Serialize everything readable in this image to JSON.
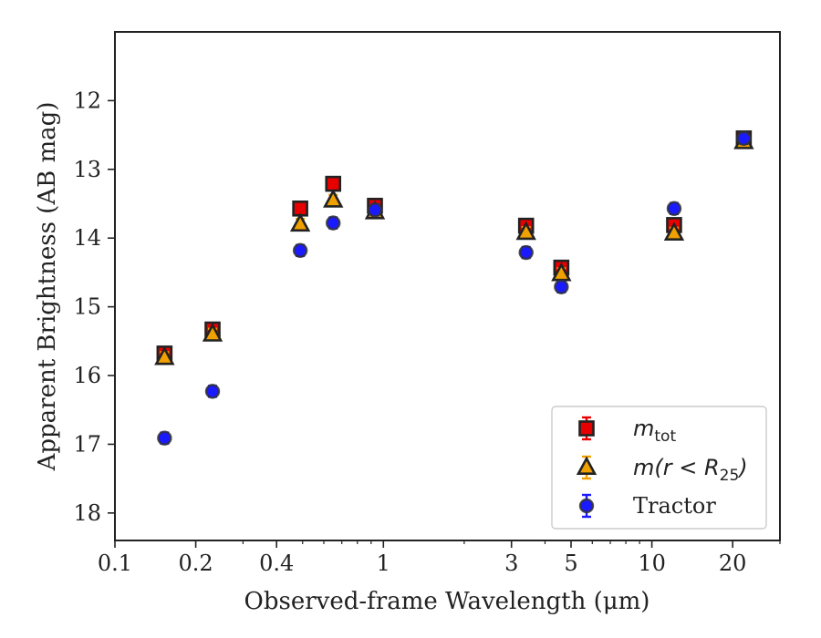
{
  "chart_data": {
    "type": "scatter",
    "xlabel": "Observed-frame Wavelength (μm)",
    "ylabel": "Apparent Brightness (AB mag)",
    "xscale": "log",
    "xlim": [
      0.1,
      30
    ],
    "ylim": [
      18.4,
      11.0
    ],
    "y_inverted": true,
    "x_ticks": [
      0.1,
      0.2,
      0.4,
      1,
      3,
      5,
      10,
      20
    ],
    "x_tick_labels": [
      "0.1",
      "0.2",
      "0.4",
      "1",
      "3",
      "5",
      "10",
      "20"
    ],
    "y_ticks": [
      12,
      13,
      14,
      15,
      16,
      17,
      18
    ],
    "y_tick_labels": [
      "12",
      "13",
      "14",
      "15",
      "16",
      "17",
      "18"
    ],
    "grid": false,
    "legend_position": "lower-right",
    "series": [
      {
        "name": "m_tot",
        "label_main": "m",
        "label_sub": "tot",
        "marker": "square",
        "color": "#e80000",
        "edge_color": "#222222",
        "errbar_color": "#e80000",
        "x": [
          0.153,
          0.231,
          0.49,
          0.65,
          0.93,
          3.4,
          4.6,
          12.1,
          22.0
        ],
        "y": [
          15.68,
          15.33,
          13.57,
          13.21,
          13.53,
          13.82,
          14.43,
          13.81,
          12.55
        ]
      },
      {
        "name": "m(r < R25)",
        "label_main": "m(r < R",
        "label_sub": "25",
        "label_tail": ")",
        "marker": "triangle",
        "color": "#f0a000",
        "edge_color": "#222222",
        "errbar_color": "#f0a000",
        "x": [
          0.153,
          0.231,
          0.49,
          0.65,
          0.93,
          3.4,
          4.6,
          12.1,
          22.0
        ],
        "y": [
          15.74,
          15.4,
          13.8,
          13.45,
          13.62,
          13.92,
          14.52,
          13.93,
          12.6
        ]
      },
      {
        "name": "Tractor",
        "label_main": "Tractor",
        "marker": "circle",
        "color": "#1a1aff",
        "edge_color": "#333333",
        "errbar_color": "#1a1aff",
        "x": [
          0.153,
          0.231,
          0.49,
          0.65,
          0.93,
          3.4,
          4.6,
          12.1,
          22.0
        ],
        "y": [
          16.91,
          16.23,
          14.18,
          13.78,
          13.59,
          14.21,
          14.71,
          13.57,
          12.55
        ]
      }
    ]
  }
}
